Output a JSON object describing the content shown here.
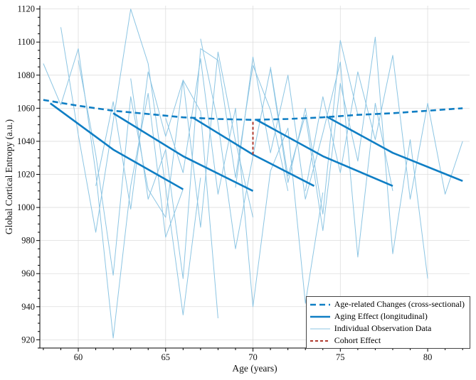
{
  "chart_data": {
    "type": "line",
    "title": "",
    "xlabel": "Age (years)",
    "ylabel": "Global Cortical Entropy (a.u.)",
    "xlim": [
      57.8,
      82.4
    ],
    "ylim": [
      915,
      1122
    ],
    "xticks": [
      60,
      65,
      70,
      75,
      80
    ],
    "yticks": [
      920,
      940,
      960,
      980,
      1000,
      1020,
      1040,
      1060,
      1080,
      1100,
      1120
    ],
    "x_minor_step": 1,
    "y_minor_step": 5,
    "grid": true,
    "legend_position": "lower right",
    "series": [
      {
        "name": "Age-related Changes (cross-sectional)",
        "color": "#0f7ec4",
        "width": 2.6,
        "dash": "8,5",
        "z": 2,
        "x": [
          58,
          60,
          62,
          64,
          66,
          68,
          70,
          72,
          74,
          76,
          78,
          80,
          82
        ],
        "y": [
          1065,
          1061.5,
          1058.5,
          1056.5,
          1054.5,
          1053.5,
          1053,
          1053.5,
          1054.5,
          1056,
          1057,
          1058.5,
          1060
        ]
      },
      {
        "name": "Aging Effect (longitudinal)",
        "color": "#0f7ec4",
        "width": 2.6,
        "z": 3,
        "segments": [
          {
            "x": [
              58.4,
              62,
              66
            ],
            "y": [
              1063,
              1035,
              1011
            ]
          },
          {
            "x": [
              62,
              66,
              70
            ],
            "y": [
              1057,
              1031,
              1010
            ]
          },
          {
            "x": [
              66.6,
              70,
              73.5
            ],
            "y": [
              1054,
              1032,
              1013
            ]
          },
          {
            "x": [
              70.2,
              74,
              78
            ],
            "y": [
              1053,
              1031,
              1013
            ]
          },
          {
            "x": [
              74.2,
              78,
              82
            ],
            "y": [
              1055,
              1033,
              1016
            ]
          }
        ]
      },
      {
        "name": "Individual Observation Data",
        "color": "#8cc5e3",
        "width": 1,
        "z": 1,
        "lines": [
          {
            "x": [
              58,
              59,
              60,
              61,
              62,
              63,
              64,
              65,
              66
            ],
            "y": [
              1087,
              1062,
              1096,
              1021,
              921,
              1013,
              1069,
              982,
              1011
            ]
          },
          {
            "x": [
              59,
              60,
              61,
              62,
              63,
              64,
              65,
              66,
              67
            ],
            "y": [
              1109,
              1044,
              985,
              1052,
              1120,
              1087,
              1012,
              935,
              1018
            ]
          },
          {
            "x": [
              60,
              61,
              62,
              63,
              64,
              65,
              66,
              67,
              68
            ],
            "y": [
              1089,
              1032,
              959,
              1067,
              1011,
              994,
              1077,
              1058,
              933
            ]
          },
          {
            "x": [
              61,
              62,
              63,
              64,
              65,
              66,
              67,
              68,
              69,
              70
            ],
            "y": [
              1013,
              1064,
              999,
              1082,
              1043,
              1077,
              988,
              1094,
              1040,
              994
            ]
          },
          {
            "x": [
              63,
              64,
              65,
              66,
              67,
              68,
              69,
              70,
              71,
              72
            ],
            "y": [
              1078,
              1005,
              1035,
              957,
              1096,
              1089,
              1018,
              1086,
              1059,
              1010
            ]
          },
          {
            "x": [
              65,
              66,
              67,
              68,
              69,
              70,
              71,
              72,
              73,
              74
            ],
            "y": [
              1054,
              1021,
              1090,
              1008,
              1060,
              940,
              1022,
              1048,
              942,
              1009
            ]
          },
          {
            "x": [
              67,
              68,
              69,
              70,
              71,
              72,
              73,
              74,
              75,
              76
            ],
            "y": [
              1102,
              1051,
              975,
              1031,
              1084,
              1015,
              1060,
              996,
              1101,
              1056
            ]
          },
          {
            "x": [
              69,
              70,
              71,
              72,
              73,
              74,
              75,
              76,
              77,
              78
            ],
            "y": [
              1012,
              1091,
              1033,
              1080,
              1005,
              1045,
              1088,
              970,
              1063,
              1010
            ]
          },
          {
            "x": [
              71,
              72,
              73,
              74,
              75,
              76,
              77,
              78,
              79,
              80
            ],
            "y": [
              1085,
              1019,
              1056,
              986,
              1075,
              1028,
              1103,
              972,
              1041,
              957
            ]
          },
          {
            "x": [
              73,
              74,
              75,
              76,
              77,
              78,
              79,
              80,
              81,
              82
            ],
            "y": [
              1010,
              1067,
              1021,
              1082,
              1041,
              1092,
              1005,
              1063,
              1008,
              1040
            ]
          }
        ]
      },
      {
        "name": "Cohort Effect",
        "color": "#b03a2e",
        "width": 2,
        "dash": "4,3",
        "z": 4,
        "x": [
          70,
          70
        ],
        "y": [
          1032,
          1052
        ]
      }
    ]
  }
}
